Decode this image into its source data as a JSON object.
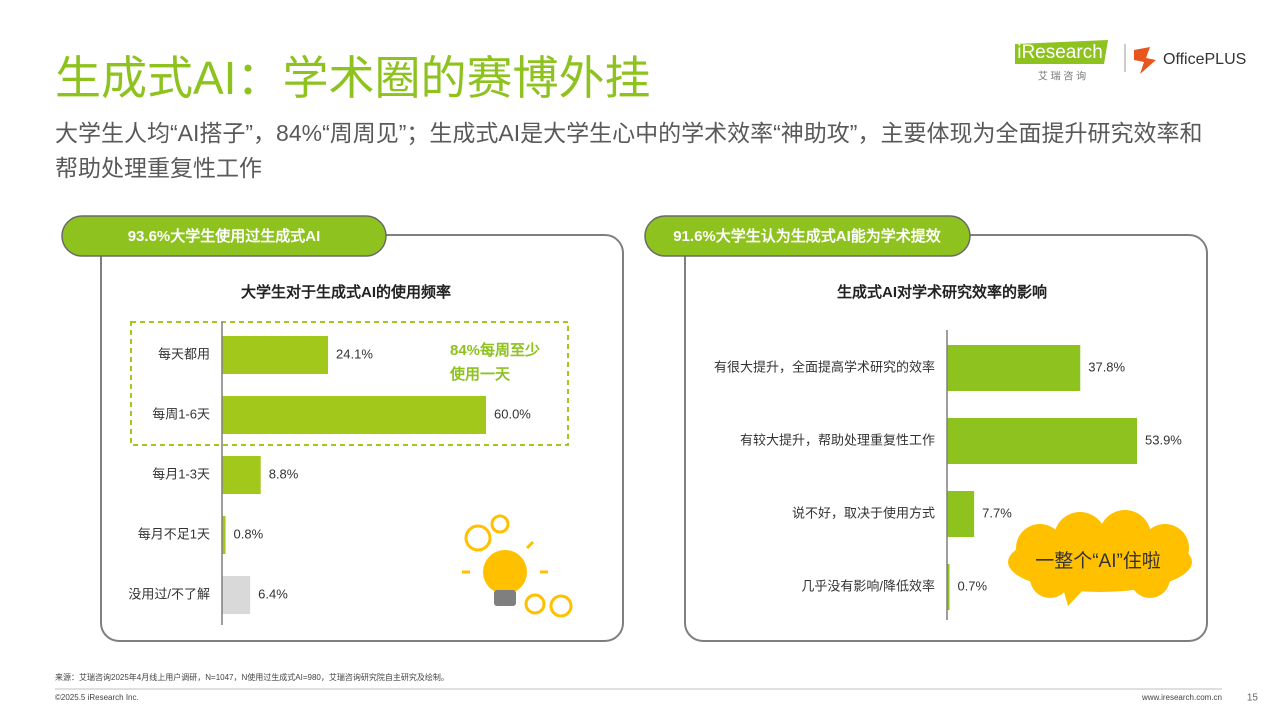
{
  "header": {
    "title": "生成式AI：学术圈的赛博外挂",
    "subtitle": "大学生人均“AI搭子”，84%“周周见”；生成式AI是大学生心中的学术效率“神助攻”，主要体现为全面提升研究效率和帮助处理重复性工作",
    "logo": "iResearch",
    "logo_sub": "艾 瑞 咨 询",
    "partner": "OfficePLUS"
  },
  "chart_data": [
    {
      "type": "hbar",
      "tag": "93.6%大学生使用过生成式AI",
      "title": "大学生对于生成式AI的使用频率",
      "categories": [
        "每天都用",
        "每周1-6天",
        "每月1-3天",
        "每月不足1天",
        "没用过/不了解"
      ],
      "values": [
        24.1,
        60.0,
        8.8,
        0.8,
        6.4
      ],
      "value_labels": [
        "24.1%",
        "60.0%",
        "8.8%",
        "0.8%",
        "6.4%"
      ],
      "colors": [
        "#a2c81c",
        "#a2c81c",
        "#a2c81c",
        "#a2c81c",
        "#d9d9d9"
      ],
      "annotation": [
        "84%每周至少",
        "使用一天"
      ]
    },
    {
      "type": "hbar",
      "tag": "91.6%大学生认为生成式AI能为学术提效",
      "title": "生成式AI对学术研究效率的影响",
      "categories": [
        "有很大提升，全面提高学术研究的效率",
        "有较大提升，帮助处理重复性工作",
        "说不好，取决于使用方式",
        "几乎没有影响/降低效率"
      ],
      "values": [
        37.8,
        53.9,
        7.7,
        0.7
      ],
      "value_labels": [
        "37.8%",
        "53.9%",
        "7.7%",
        "0.7%"
      ],
      "colors": [
        "#8dc21f",
        "#8dc21f",
        "#8dc21f",
        "#8dc21f"
      ],
      "annotation": [
        "一整个“AI”住啦"
      ]
    }
  ],
  "footer": {
    "source": "来源：艾瑞咨询2025年4月线上用户调研，N=1047，N使用过生成式AI=980，艾瑞咨询研究院自主研究及绘制。",
    "copyright": "©2025.5 iResearch Inc.",
    "url": "www.iresearch.com.cn",
    "page": "15"
  }
}
